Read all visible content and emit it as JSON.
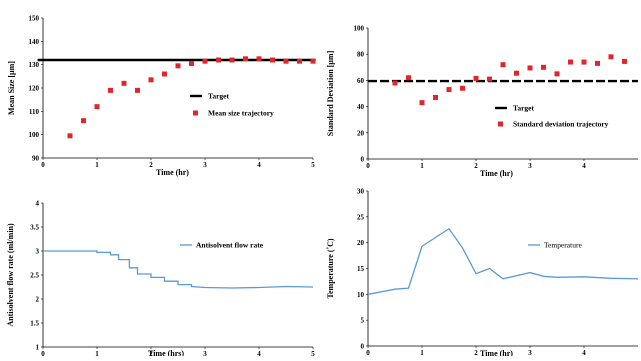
{
  "chart_data": [
    {
      "type": "scatter",
      "xlabel": "Time (hr)",
      "ylabel": "Mean Size [µm]",
      "xlim": [
        0,
        5
      ],
      "ylim": [
        90,
        150
      ],
      "xticks": [
        "0",
        "1",
        "2",
        "3",
        "4",
        "5"
      ],
      "yticks": [
        "90",
        "100",
        "110",
        "120",
        "130",
        "140",
        "150"
      ],
      "legend_position": "center-right",
      "colors": {
        "target": "#000000",
        "trajectory": "#e0262a"
      },
      "series": [
        {
          "name": "Target",
          "kind": "line",
          "x": [
            -0.1,
            5.05
          ],
          "y": [
            132,
            132
          ]
        },
        {
          "name": "Mean size trajectory",
          "kind": "points",
          "x": [
            0.5,
            0.75,
            1.0,
            1.25,
            1.5,
            1.75,
            2.0,
            2.25,
            2.5,
            2.75,
            3.0,
            3.25,
            3.5,
            3.75,
            4.0,
            4.25,
            4.5,
            4.75,
            5.0
          ],
          "y": [
            99.5,
            106,
            112,
            119,
            122,
            119,
            123.5,
            126,
            129.5,
            130.5,
            131.5,
            132,
            132,
            132.5,
            132.5,
            132,
            131.5,
            131.5,
            131.5
          ]
        }
      ]
    },
    {
      "type": "scatter",
      "xlabel": "Time (hr)",
      "ylabel": "Standard Deviation [µm]",
      "xlim": [
        0,
        5
      ],
      "ylim": [
        0,
        100
      ],
      "xticks": [
        "0",
        "1",
        "2",
        "3",
        "4"
      ],
      "yticks": [
        "0",
        "20",
        "40",
        "60",
        "80",
        "100"
      ],
      "legend_position": "bottom-right",
      "colors": {
        "target": "#000000",
        "trajectory": "#e0262a"
      },
      "series": [
        {
          "name": "Target",
          "kind": "line",
          "x": [
            0.0,
            5.0
          ],
          "y": [
            59.5,
            59.5
          ]
        },
        {
          "name": "Standard deviation trajectory",
          "kind": "points",
          "x": [
            0.5,
            0.75,
            1.0,
            1.25,
            1.5,
            1.75,
            2.0,
            2.25,
            2.5,
            2.75,
            3.0,
            3.25,
            3.5,
            3.75,
            4.0,
            4.25,
            4.5,
            4.75
          ],
          "y": [
            58,
            62,
            43,
            47,
            53,
            54,
            61.5,
            61,
            72,
            65.5,
            69.5,
            70,
            65,
            74,
            74,
            73,
            78,
            74.5
          ]
        }
      ]
    },
    {
      "type": "line",
      "xlabel": "Time (hrs)",
      "ylabel": "Antisolvent flow rate (ml/min)",
      "xlim": [
        0,
        5
      ],
      "ylim": [
        1,
        4
      ],
      "xticks": [
        "0",
        "1",
        "2",
        "3",
        "4",
        "5"
      ],
      "yticks": [
        "1",
        "1.5",
        "2",
        "2.5",
        "3",
        "3.5",
        "4"
      ],
      "legend_position": "top-right",
      "colors": {
        "line": "#5b9bd5"
      },
      "series": [
        {
          "name": "Antisolvent flow rate",
          "x": [
            0,
            1.0,
            1.0,
            1.25,
            1.25,
            1.4,
            1.4,
            1.6,
            1.6,
            1.75,
            1.75,
            2.0,
            2.0,
            2.25,
            2.25,
            2.5,
            2.5,
            2.75,
            2.75,
            3.0,
            3.5,
            4.0,
            4.5,
            5.0
          ],
          "y": [
            3.0,
            3.0,
            2.97,
            2.97,
            2.92,
            2.92,
            2.82,
            2.82,
            2.65,
            2.65,
            2.52,
            2.52,
            2.45,
            2.45,
            2.37,
            2.37,
            2.3,
            2.3,
            2.26,
            2.24,
            2.23,
            2.24,
            2.26,
            2.25
          ]
        }
      ]
    },
    {
      "type": "line",
      "xlabel": "Time (hr)",
      "ylabel": "Temperature (˚C)",
      "xlim": [
        0,
        5
      ],
      "ylim": [
        0,
        30
      ],
      "xticks": [
        "0",
        "1",
        "2",
        "3",
        "4"
      ],
      "yticks": [
        "0",
        "5",
        "10",
        "15",
        "20",
        "25",
        "30"
      ],
      "legend_position": "top-right",
      "colors": {
        "line": "#5b9bd5"
      },
      "series": [
        {
          "name": "Temperature",
          "x": [
            0,
            0.5,
            0.75,
            1.0,
            1.25,
            1.5,
            1.75,
            2.0,
            2.25,
            2.5,
            3.0,
            3.25,
            3.5,
            4.0,
            4.5,
            5.0
          ],
          "y": [
            10,
            11,
            11.2,
            19.3,
            21,
            22.7,
            19,
            14,
            15,
            13,
            14.2,
            13.5,
            13.3,
            13.4,
            13.1,
            13
          ]
        }
      ]
    }
  ]
}
